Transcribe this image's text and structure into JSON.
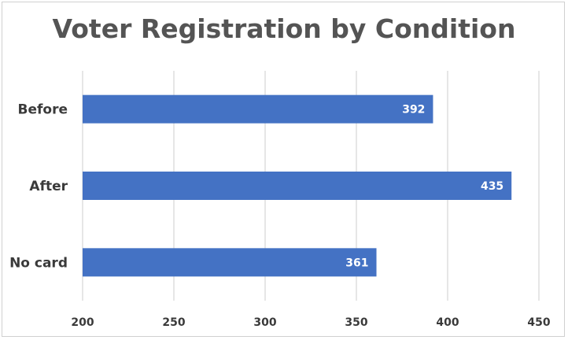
{
  "chart_data": {
    "type": "bar",
    "orientation": "horizontal",
    "title": "Voter Registration by Condition",
    "categories": [
      "Before",
      "After",
      "No card"
    ],
    "values": [
      392,
      435,
      361
    ],
    "xlabel": "",
    "ylabel": "",
    "xlim": [
      200,
      450
    ],
    "ticks": [
      200,
      250,
      300,
      350,
      400,
      450
    ],
    "grid": true,
    "legend": "none",
    "data_labels": true,
    "bar_color": "#4472C4"
  }
}
